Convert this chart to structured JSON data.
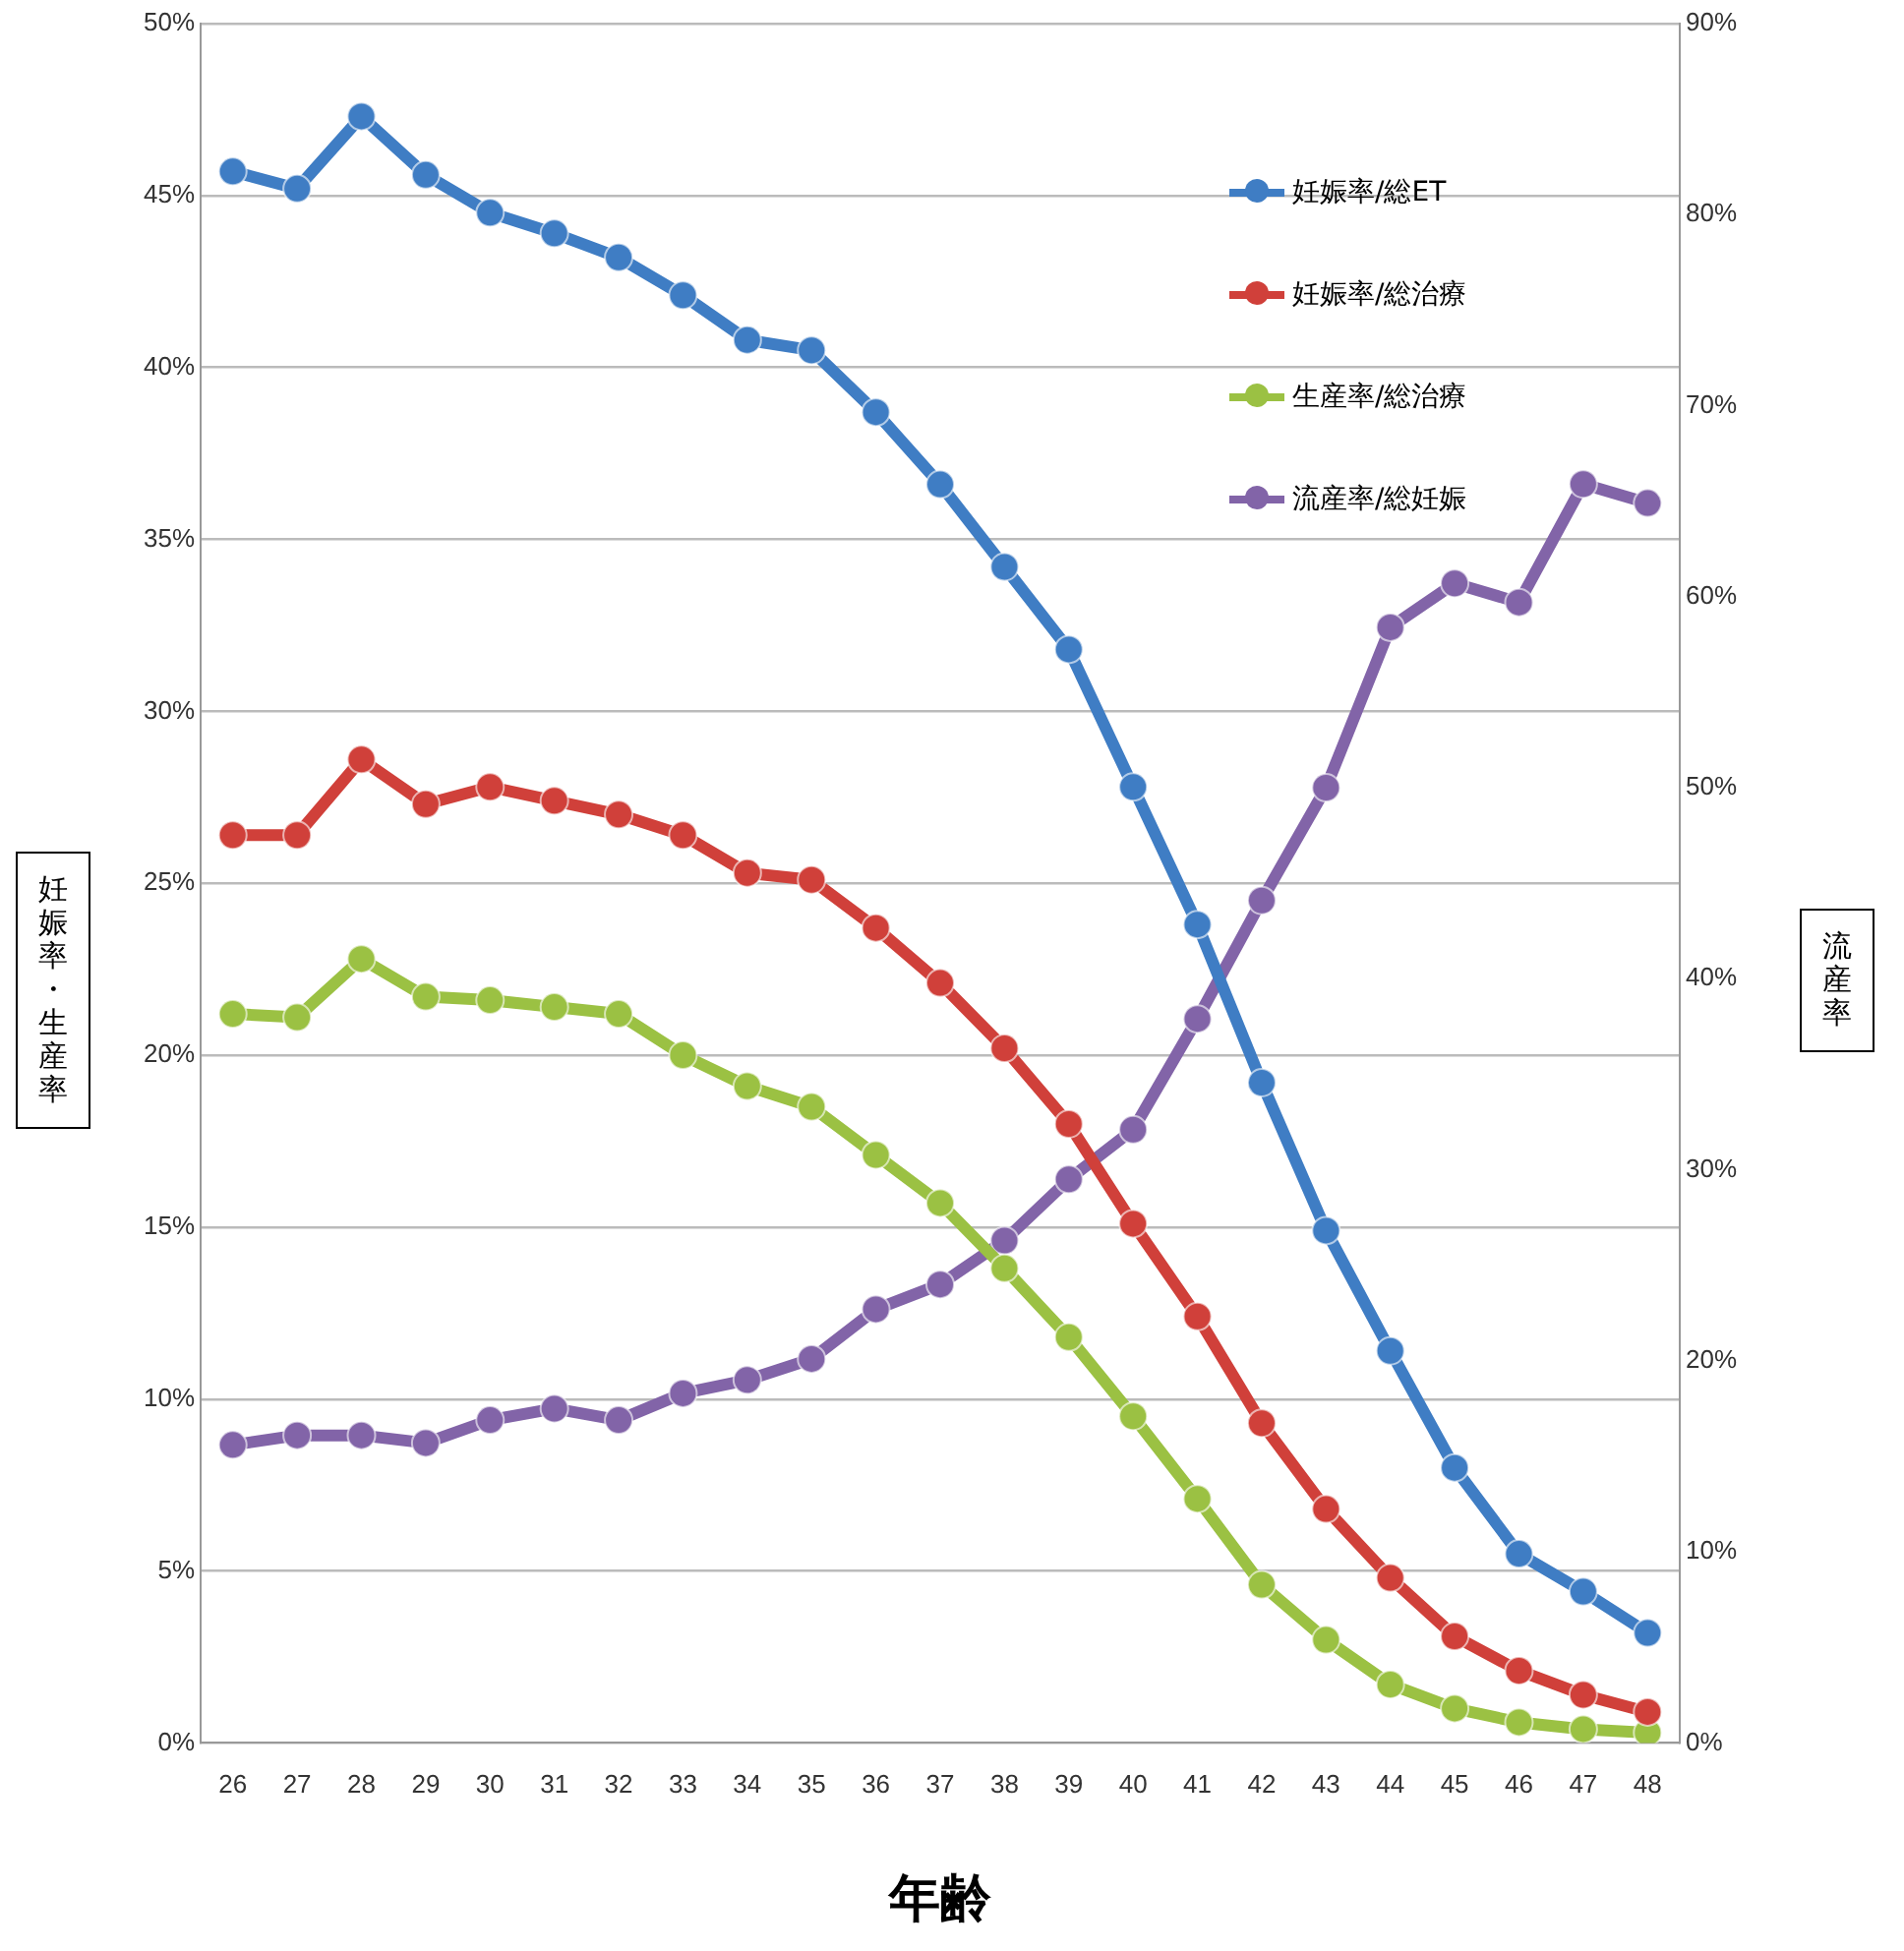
{
  "chart_data": {
    "type": "line",
    "xlabel": "年齢",
    "ylabel": "妊娠率・生産率",
    "y2label": "流産率",
    "categories": [
      "26",
      "27",
      "28",
      "29",
      "30",
      "31",
      "32",
      "33",
      "34",
      "35",
      "36",
      "37",
      "38",
      "39",
      "40",
      "41",
      "42",
      "43",
      "44",
      "45",
      "46",
      "47",
      "48"
    ],
    "series": [
      {
        "name": "妊娠率/総ET",
        "color": "#3f7dc4",
        "values": [
          45.7,
          45.2,
          47.3,
          45.6,
          44.5,
          43.9,
          43.2,
          42.1,
          40.8,
          40.5,
          38.7,
          36.6,
          34.2,
          31.8,
          27.8,
          23.8,
          19.2,
          14.9,
          11.4,
          8.0,
          5.5,
          4.4,
          3.2
        ]
      },
      {
        "name": "妊娠率/総治療",
        "color": "#d0403a",
        "values": [
          26.4,
          26.4,
          28.6,
          27.3,
          27.8,
          27.4,
          27.0,
          26.4,
          25.3,
          25.1,
          23.7,
          22.1,
          20.2,
          18.0,
          15.1,
          12.4,
          9.3,
          6.8,
          4.8,
          3.1,
          2.1,
          1.4,
          0.9
        ]
      },
      {
        "name": "生産率/総治療",
        "color": "#9bc143",
        "values": [
          21.2,
          21.1,
          22.8,
          21.7,
          21.6,
          21.4,
          21.2,
          20.0,
          19.1,
          18.5,
          17.1,
          15.7,
          13.8,
          11.8,
          9.5,
          7.1,
          4.6,
          3.0,
          1.7,
          1.0,
          0.6,
          0.4,
          0.3
        ]
      },
      {
        "name": "流産率/総妊娠",
        "color": "#8264a8",
        "axis": "y2",
        "values": [
          15.6,
          16.1,
          16.1,
          15.7,
          16.9,
          17.5,
          16.9,
          18.3,
          19.0,
          20.1,
          22.7,
          24.0,
          26.3,
          29.5,
          32.1,
          37.9,
          44.1,
          50.0,
          58.4,
          60.7,
          59.7,
          65.9,
          64.9
        ]
      }
    ],
    "ylim": [
      0,
      50
    ],
    "yticks": [
      {
        "value": 0,
        "label": "0%"
      },
      {
        "value": 5,
        "label": "5%"
      },
      {
        "value": 10,
        "label": "10%"
      },
      {
        "value": 15,
        "label": "15%"
      },
      {
        "value": 20,
        "label": "20%"
      },
      {
        "value": 25,
        "label": "25%"
      },
      {
        "value": 30,
        "label": "30%"
      },
      {
        "value": 35,
        "label": "35%"
      },
      {
        "value": 40,
        "label": "40%"
      },
      {
        "value": 45,
        "label": "45%"
      },
      {
        "value": 50,
        "label": "50%"
      }
    ],
    "y2lim": [
      0,
      90
    ],
    "y2ticks": [
      {
        "value": 0,
        "label": "0%"
      },
      {
        "value": 10,
        "label": "10%"
      },
      {
        "value": 20,
        "label": "20%"
      },
      {
        "value": 30,
        "label": "30%"
      },
      {
        "value": 40,
        "label": "40%"
      },
      {
        "value": 50,
        "label": "50%"
      },
      {
        "value": 60,
        "label": "60%"
      },
      {
        "value": 70,
        "label": "70%"
      },
      {
        "value": 80,
        "label": "80%"
      },
      {
        "value": 90,
        "label": "90%"
      }
    ],
    "grid": "y",
    "legend": "top right",
    "marker": "circle",
    "line_style": "solid"
  }
}
